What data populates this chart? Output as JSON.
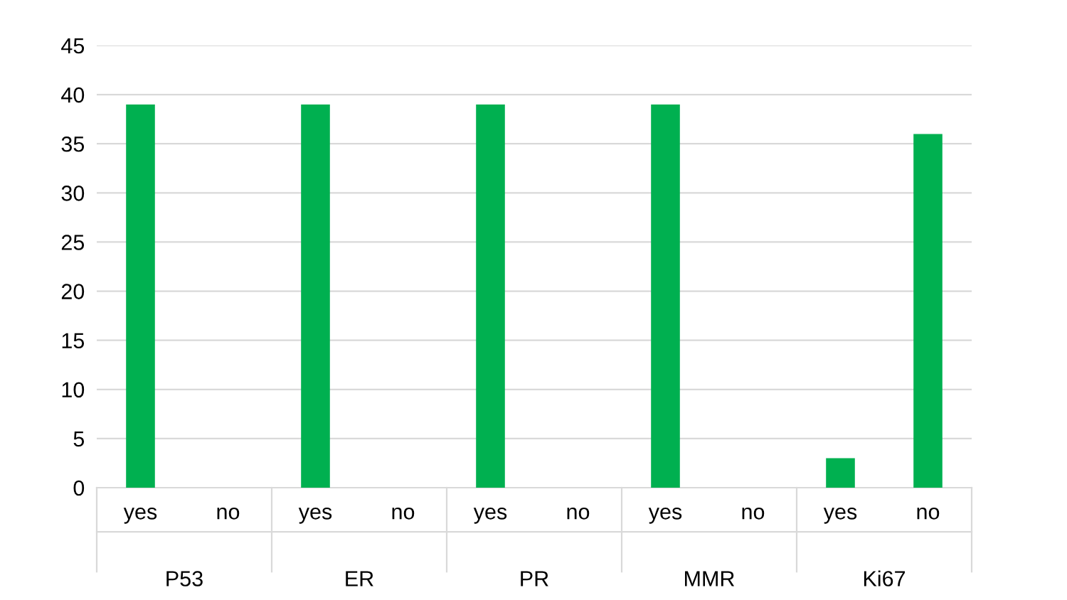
{
  "chart_data": {
    "type": "bar",
    "categories": [
      "yes",
      "no",
      "yes",
      "no",
      "yes",
      "no",
      "yes",
      "no",
      "yes",
      "no"
    ],
    "values": [
      39,
      0,
      39,
      0,
      39,
      0,
      39,
      0,
      3,
      36
    ],
    "color": "#00b050",
    "annotations": [
      "P53",
      "ER",
      "PR",
      "MMR",
      "Ki67"
    ],
    "ylim": [
      0,
      45
    ],
    "yticks": [
      0,
      5,
      10,
      15,
      20,
      25,
      30,
      35,
      40,
      45
    ],
    "grid": "y",
    "legend": false
  }
}
